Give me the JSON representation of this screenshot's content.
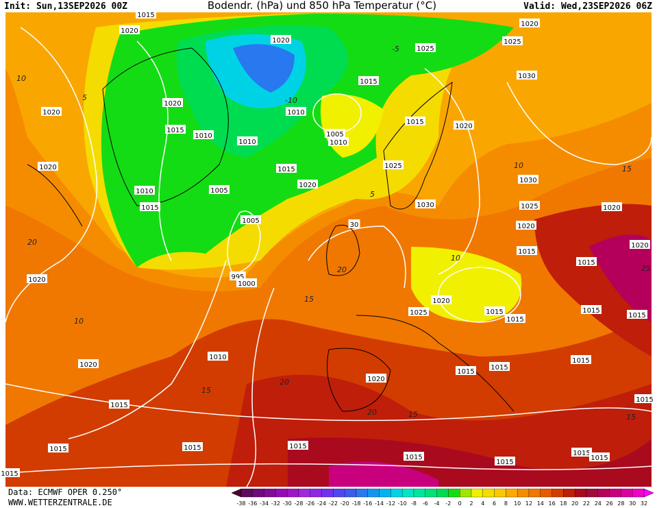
{
  "header": {
    "init": "Init: Sun,13SEP2026 00Z",
    "title": "Bodendr. (hPa) und 850 hPa Temperatur (°C)",
    "valid": "Valid: Wed,23SEP2026 06Z"
  },
  "footer": {
    "data": "Data: ECMWF OPER 0.250°",
    "site": "WWW.WETTERZENTRALE.DE"
  },
  "colorbar": {
    "labels": [
      -38,
      -36,
      -34,
      -32,
      -30,
      -28,
      -26,
      -24,
      -22,
      -20,
      -18,
      -16,
      -14,
      -12,
      -10,
      -8,
      -6,
      -4,
      -2,
      0,
      2,
      4,
      6,
      8,
      10,
      12,
      14,
      16,
      18,
      20,
      22,
      24,
      26,
      28,
      30,
      32
    ],
    "colors": [
      "#4b0033",
      "#5e0a5e",
      "#6e0a7a",
      "#820a96",
      "#960ab4",
      "#a014c8",
      "#a028dc",
      "#8c28e6",
      "#6e32f0",
      "#5046f0",
      "#3c5af0",
      "#2878f0",
      "#1496f0",
      "#00b4f0",
      "#00d2e6",
      "#00e6c8",
      "#00e6a0",
      "#00e178",
      "#00dc50",
      "#14dc14",
      "#a0e600",
      "#f0f000",
      "#f5dc00",
      "#fac800",
      "#faaa00",
      "#f58c00",
      "#f07800",
      "#e65a00",
      "#d23c00",
      "#be1e0a",
      "#aa0a1e",
      "#a00a3c",
      "#b4005a",
      "#c8007d",
      "#dc00a0",
      "#f000c8",
      "#ff00ff"
    ]
  },
  "isobar_labels": [
    "1015",
    "1020",
    "1020",
    "1025",
    "1020",
    "1025",
    "1030",
    "1015",
    "1020",
    "1010",
    "1005",
    "1010",
    "1015",
    "1010",
    "1010",
    "1015",
    "1020",
    "1020",
    "1020",
    "1025",
    "1015",
    "1020",
    "1030",
    "1005",
    "1010",
    "1015",
    "1030",
    "1025",
    "1020",
    "1005",
    "30",
    "1020",
    "1020",
    "1015",
    "1015",
    "995",
    "1000",
    "1020",
    "1020",
    "1025",
    "1015",
    "1015",
    "1015",
    "1015",
    "1010",
    "1020",
    "1015",
    "1015",
    "1015",
    "1020",
    "1015",
    "1015",
    "1015",
    "1015",
    "1015",
    "1015",
    "1015",
    "1015",
    "1015",
    "1015"
  ],
  "isotherm_labels": [
    "10",
    "5",
    "-5",
    "-10",
    "15",
    "20",
    "10",
    "15",
    "5",
    "10",
    "15",
    "20",
    "15",
    "20",
    "25",
    "10",
    "15",
    "20"
  ]
}
